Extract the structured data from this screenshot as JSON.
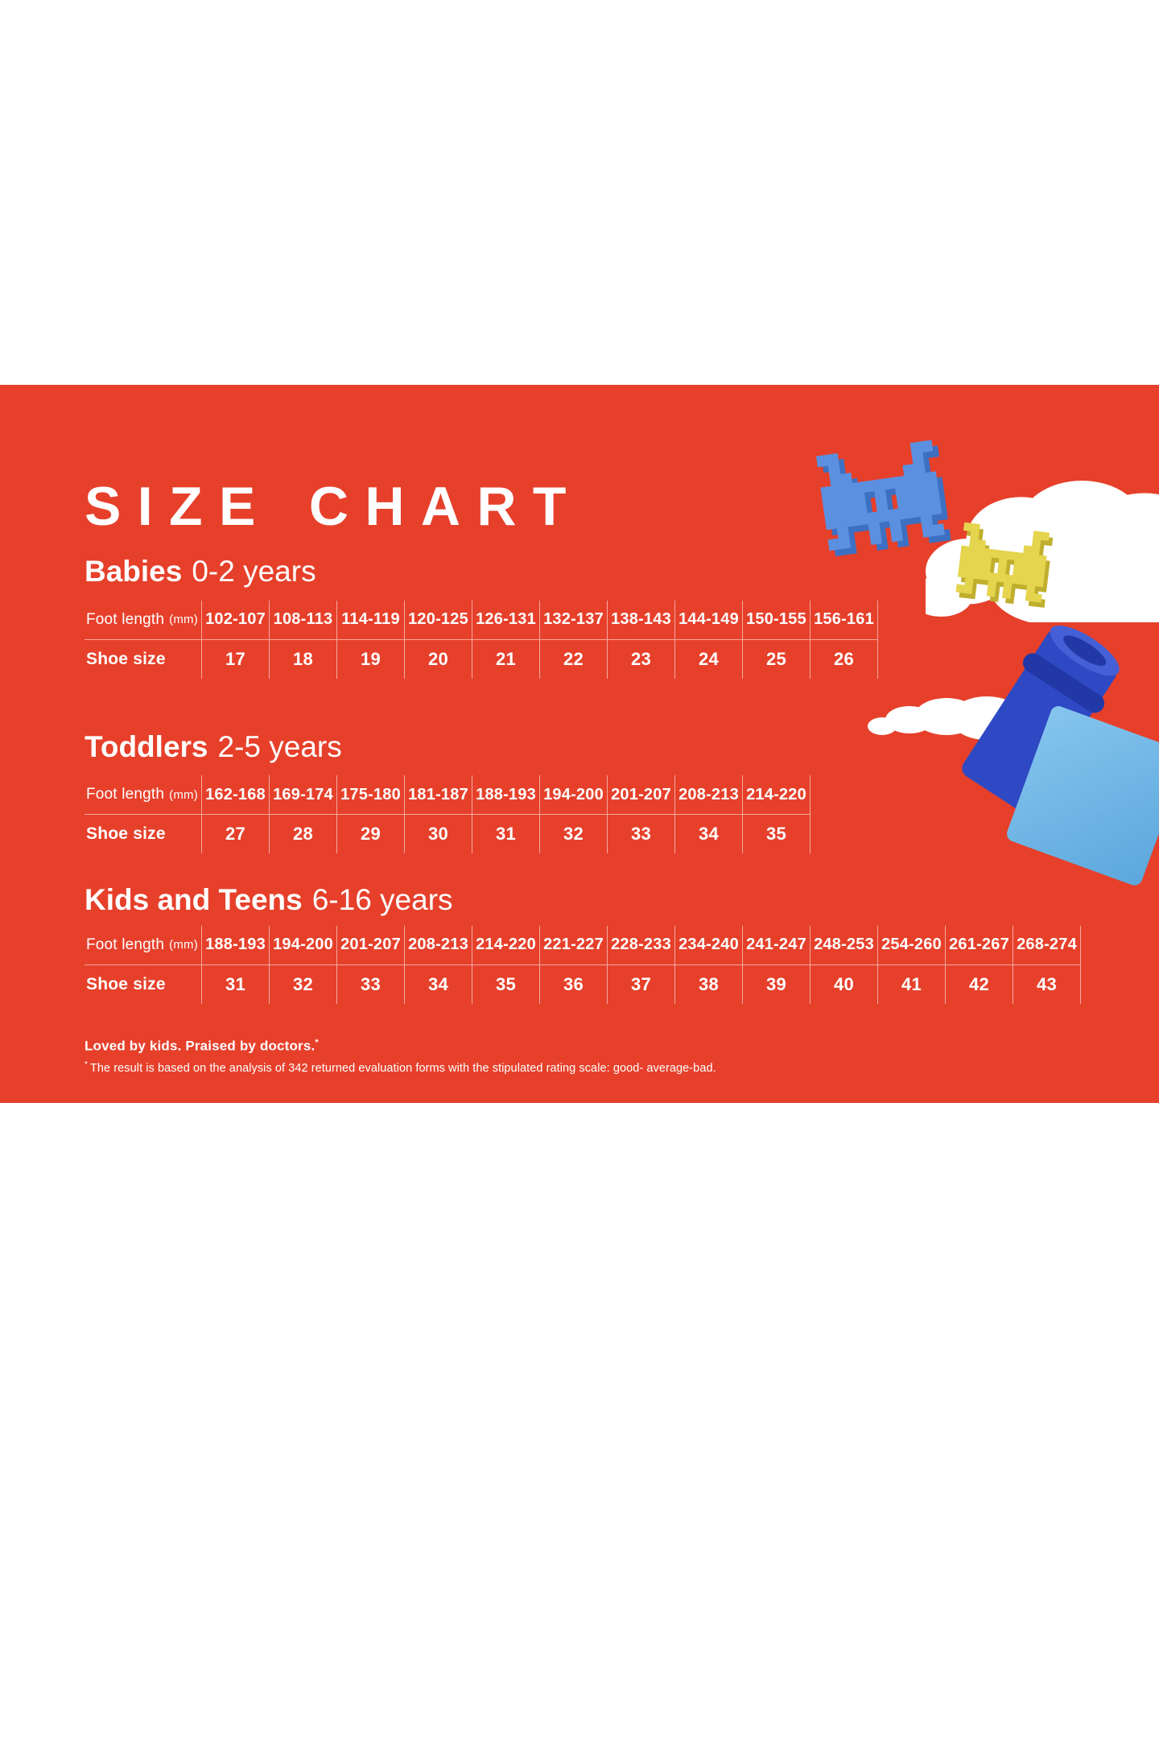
{
  "banner": {
    "background": "#e6402b",
    "title": "SIZE CHART",
    "footer_text": "Loved by kids. Praised by doctors.",
    "footer_sup": "*",
    "footnote_sup": "*",
    "footnote_text": "The result is based on the analysis of 342 returned evaluation forms with the stipulated rating scale: good- average-bad."
  },
  "table_labels": {
    "foot_length": "Foot length",
    "foot_length_unit": "(mm)",
    "shoe_size": "Shoe size"
  },
  "sections": [
    {
      "name": "Babies",
      "age": "0-2 years",
      "foot_lengths": [
        "102-107",
        "108-113",
        "114-119",
        "120-125",
        "126-131",
        "132-137",
        "138-143",
        "144-149",
        "150-155",
        "156-161"
      ],
      "shoe_sizes": [
        "17",
        "18",
        "19",
        "20",
        "21",
        "22",
        "23",
        "24",
        "25",
        "26"
      ]
    },
    {
      "name": "Toddlers",
      "age": "2-5 years",
      "foot_lengths": [
        "162-168",
        "169-174",
        "175-180",
        "181-187",
        "188-193",
        "194-200",
        "201-207",
        "208-213",
        "214-220"
      ],
      "shoe_sizes": [
        "27",
        "28",
        "29",
        "30",
        "31",
        "32",
        "33",
        "34",
        "35"
      ]
    },
    {
      "name": "Kids and Teens",
      "age": "6-16 years",
      "foot_lengths": [
        "188-193",
        "194-200",
        "201-207",
        "208-213",
        "214-220",
        "221-227",
        "228-233",
        "234-240",
        "241-247",
        "248-253",
        "254-260",
        "261-267",
        "268-274"
      ],
      "shoe_sizes": [
        "31",
        "32",
        "33",
        "34",
        "35",
        "36",
        "37",
        "38",
        "39",
        "40",
        "41",
        "42",
        "43"
      ]
    }
  ],
  "decorations": {
    "cloud": "#ffffff",
    "pixel_toy_blue": "#5b90e0",
    "pixel_toy_blue_shade": "#3d6fc2",
    "pixel_toy_yellow": "#e5d44e",
    "pixel_toy_yellow_shade": "#c0ae2e",
    "rocket_body_blue": "#2e49c3",
    "rocket_rim_blue": "#4560d6",
    "rocket_ring_blue": "#2238a6",
    "cube_blue_light": "#86c5ef",
    "cube_blue_dark": "#5ba7dc"
  }
}
